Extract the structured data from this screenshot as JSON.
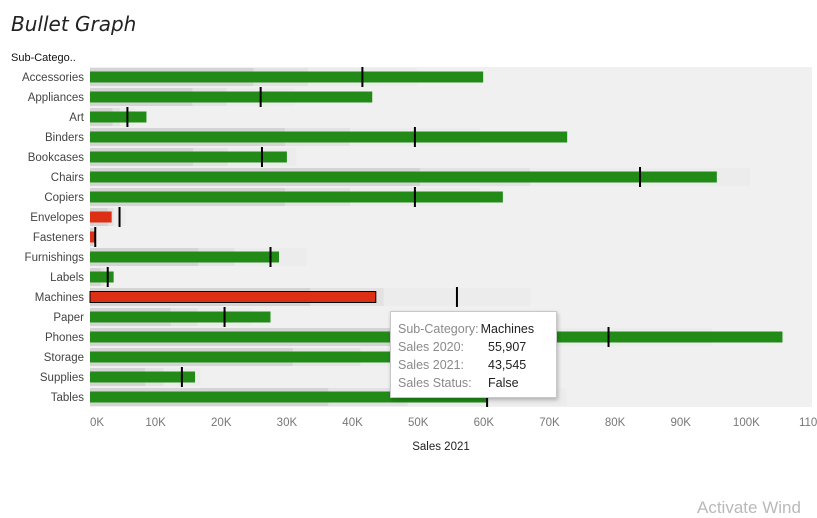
{
  "title": "Bullet Graph",
  "dimension_header": "Sub-Catego..",
  "chart_data": {
    "type": "bar",
    "subtype": "bullet",
    "title": "Bullet Graph",
    "xlabel": "Sales 2021",
    "ylabel": "Sub-Catego..",
    "xlim": [
      0,
      110000
    ],
    "x_ticks": [
      0,
      10000,
      20000,
      30000,
      40000,
      50000,
      60000,
      70000,
      80000,
      90000,
      100000,
      110000
    ],
    "x_tick_labels": [
      "0K",
      "10K",
      "20K",
      "30K",
      "40K",
      "50K",
      "60K",
      "70K",
      "80K",
      "90K",
      "100K",
      "110K"
    ],
    "categories": [
      "Accessories",
      "Appliances",
      "Art",
      "Binders",
      "Bookcases",
      "Chairs",
      "Copiers",
      "Envelopes",
      "Fasteners",
      "Furnishings",
      "Labels",
      "Machines",
      "Paper",
      "Phones",
      "Storage",
      "Supplies",
      "Tables"
    ],
    "series": [
      {
        "name": "Sales 2021",
        "values": [
          59900,
          43000,
          8600,
          72700,
          30000,
          95500,
          62900,
          3300,
          900,
          28800,
          3600,
          43545,
          27500,
          105500,
          70000,
          16000,
          60500
        ]
      },
      {
        "name": "Sales 2020",
        "values": [
          41500,
          26000,
          5700,
          49500,
          26200,
          83800,
          49500,
          4500,
          800,
          27500,
          2700,
          55907,
          20500,
          79000,
          51500,
          14000,
          60500
        ]
      }
    ],
    "status": [
      "True",
      "True",
      "True",
      "True",
      "True",
      "True",
      "True",
      "False",
      "False",
      "True",
      "True",
      "False",
      "True",
      "True",
      "True",
      "True",
      "True"
    ],
    "colors": {
      "true": "#228b18",
      "false": "#dc2f14",
      "target": "#000000",
      "band_dark": "#d4d4d4",
      "band_mid": "#e2e2e2",
      "band_light": "#ececec",
      "plot_bg": "#f0f0f0"
    },
    "grid": false,
    "selected": "Machines"
  },
  "tooltip": {
    "rows": [
      {
        "key": "Sub-Category:",
        "value": "Machines"
      },
      {
        "key": "Sales 2020:",
        "value": "55,907"
      },
      {
        "key": "Sales 2021:",
        "value": "43,545"
      },
      {
        "key": "Sales Status:",
        "value": "False"
      }
    ]
  },
  "watermark": "Activate Wind"
}
